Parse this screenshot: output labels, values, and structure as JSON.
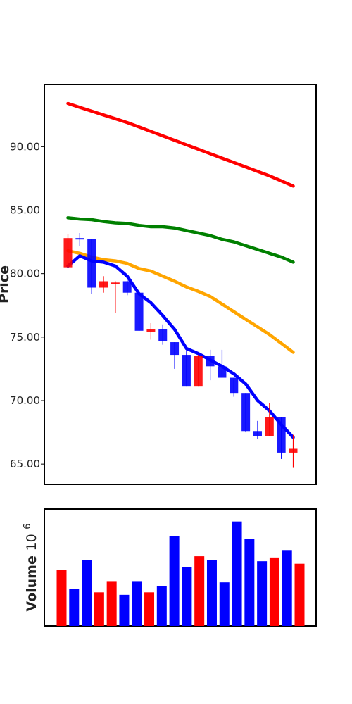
{
  "chart_data": [
    {
      "type": "candlestick",
      "ylabel": "Price",
      "ylim": [
        63.4,
        94.9
      ],
      "yticks": [
        "65.00",
        "70.00",
        "75.00",
        "80.00",
        "85.00",
        "90.00"
      ],
      "candles": [
        {
          "open": 80.5,
          "close": 82.8,
          "high": 83.1,
          "low": 80.5,
          "direction": "up"
        },
        {
          "open": 82.8,
          "close": 82.7,
          "high": 83.2,
          "low": 82.2,
          "direction": "down"
        },
        {
          "open": 82.7,
          "close": 78.9,
          "high": 82.7,
          "low": 78.4,
          "direction": "down"
        },
        {
          "open": 78.9,
          "close": 79.4,
          "high": 79.8,
          "low": 78.5,
          "direction": "up"
        },
        {
          "open": 79.3,
          "close": 79.3,
          "high": 79.4,
          "low": 76.9,
          "direction": "up"
        },
        {
          "open": 79.4,
          "close": 78.5,
          "high": 79.5,
          "low": 78.3,
          "direction": "down"
        },
        {
          "open": 78.5,
          "close": 75.5,
          "high": 78.5,
          "low": 75.5,
          "direction": "down"
        },
        {
          "open": 75.4,
          "close": 75.6,
          "high": 76.1,
          "low": 74.8,
          "direction": "up"
        },
        {
          "open": 75.6,
          "close": 74.7,
          "high": 76.0,
          "low": 74.4,
          "direction": "down"
        },
        {
          "open": 74.6,
          "close": 73.6,
          "high": 74.6,
          "low": 72.5,
          "direction": "down"
        },
        {
          "open": 73.6,
          "close": 71.1,
          "high": 74.0,
          "low": 71.1,
          "direction": "down"
        },
        {
          "open": 71.1,
          "close": 73.5,
          "high": 73.6,
          "low": 71.1,
          "direction": "up"
        },
        {
          "open": 73.5,
          "close": 72.7,
          "high": 74.0,
          "low": 71.6,
          "direction": "down"
        },
        {
          "open": 72.7,
          "close": 71.8,
          "high": 74.0,
          "low": 71.8,
          "direction": "down"
        },
        {
          "open": 71.8,
          "close": 70.6,
          "high": 71.8,
          "low": 70.3,
          "direction": "down"
        },
        {
          "open": 70.6,
          "close": 67.6,
          "high": 70.6,
          "low": 67.5,
          "direction": "down"
        },
        {
          "open": 67.6,
          "close": 67.2,
          "high": 68.4,
          "low": 67.0,
          "direction": "down"
        },
        {
          "open": 67.2,
          "close": 68.7,
          "high": 69.8,
          "low": 67.2,
          "direction": "up"
        },
        {
          "open": 68.7,
          "close": 65.9,
          "high": 68.7,
          "low": 65.4,
          "direction": "down"
        },
        {
          "open": 65.9,
          "close": 66.2,
          "high": 67.3,
          "low": 64.7,
          "direction": "up"
        }
      ],
      "moving_averages": [
        {
          "color": "#ff0000",
          "values": [
            93.4,
            93.1,
            92.8,
            92.5,
            92.2,
            91.9,
            91.55,
            91.2,
            90.85,
            90.5,
            90.15,
            89.8,
            89.45,
            89.1,
            88.75,
            88.4,
            88.05,
            87.7,
            87.3,
            86.9
          ]
        },
        {
          "color": "#008000",
          "values": [
            84.4,
            84.3,
            84.25,
            84.1,
            84.0,
            83.95,
            83.8,
            83.7,
            83.7,
            83.6,
            83.4,
            83.2,
            83.0,
            82.7,
            82.5,
            82.2,
            81.9,
            81.6,
            81.3,
            80.9
          ]
        },
        {
          "color": "#ffa500",
          "values": [
            81.8,
            81.6,
            81.3,
            81.1,
            81.0,
            80.8,
            80.4,
            80.2,
            79.8,
            79.4,
            78.95,
            78.6,
            78.2,
            77.6,
            77.0,
            76.4,
            75.8,
            75.2,
            74.5,
            73.8
          ]
        },
        {
          "color": "#0000ff",
          "values": [
            80.6,
            81.4,
            81.0,
            80.9,
            80.6,
            79.8,
            78.4,
            77.7,
            76.7,
            75.6,
            74.1,
            73.7,
            73.2,
            72.7,
            72.1,
            71.3,
            70.0,
            69.2,
            68.1,
            67.1
          ]
        }
      ],
      "colors": {
        "up": "#ff0000",
        "down": "#0000ff"
      }
    },
    {
      "type": "bar",
      "ylabel": "Volume",
      "ylabel_exponent": "6",
      "ylim": [
        0,
        9.4
      ],
      "values": [
        4.5,
        3.0,
        5.3,
        2.7,
        3.6,
        2.5,
        3.6,
        2.7,
        3.2,
        7.2,
        4.7,
        5.6,
        5.3,
        3.5,
        8.4,
        7.0,
        5.2,
        5.5,
        6.1,
        5.0
      ],
      "directions": [
        "up",
        "down",
        "down",
        "up",
        "up",
        "down",
        "down",
        "up",
        "down",
        "down",
        "down",
        "up",
        "down",
        "down",
        "down",
        "down",
        "down",
        "up",
        "down",
        "up"
      ]
    }
  ]
}
